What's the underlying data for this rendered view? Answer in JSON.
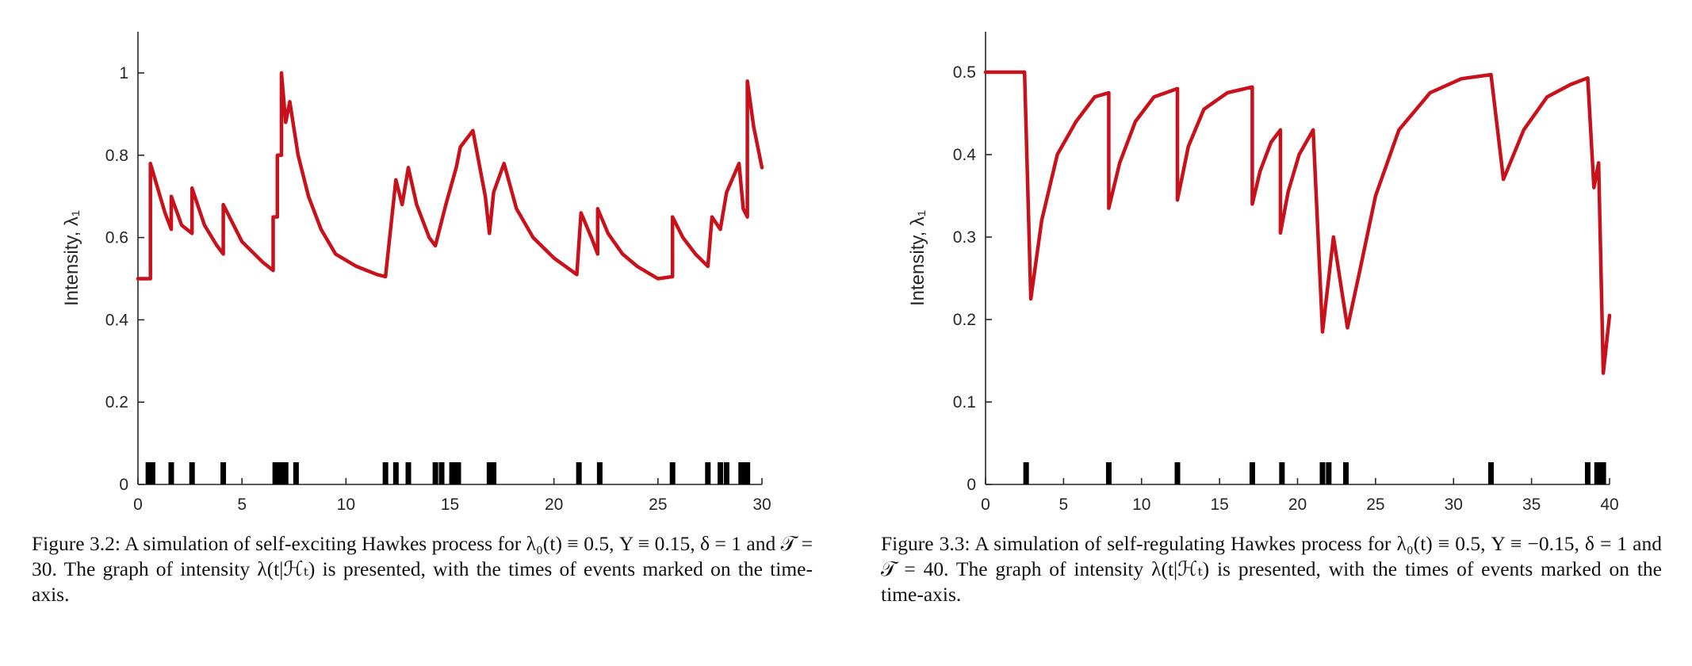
{
  "chart_data": [
    {
      "type": "line",
      "title": "",
      "xlabel": "",
      "ylabel": "Intensity, λ₁",
      "xlim": [
        0,
        30
      ],
      "ylim": [
        0,
        1.1
      ],
      "xticks": [
        0,
        5,
        10,
        15,
        20,
        25,
        30
      ],
      "yticks": [
        0,
        0.2,
        0.4,
        0.6,
        0.8,
        1
      ],
      "xtick_labels": [
        "0",
        "5",
        "10",
        "15",
        "20",
        "25",
        "30"
      ],
      "ytick_labels": [
        "0",
        "0.2",
        "0.4",
        "0.6",
        "0.8",
        "1"
      ],
      "line_color": "#c8111a",
      "event_color": "#000000",
      "baseline": 0.5,
      "jump": 0.15,
      "delta": 1,
      "T": 30,
      "series": [
        {
          "x": [
            0,
            0.3,
            0.3,
            0.6,
            0.6,
            1.3,
            1.6,
            1.6,
            2.1,
            2.6,
            2.6,
            3.2,
            3.8,
            4.1,
            4.1,
            5.0,
            6.0,
            6.5,
            6.5,
            6.7,
            6.7,
            6.9,
            6.9,
            7.1,
            7.1,
            7.3,
            7.3,
            7.7,
            8.2,
            8.8,
            9.5,
            10.5,
            11.5,
            11.9,
            11.9,
            12.4,
            12.4,
            12.7,
            12.7,
            13.0,
            13.0,
            13.4,
            14.0,
            14.3,
            14.3,
            14.8,
            14.8,
            15.3,
            15.3,
            15.5,
            15.5,
            16.1,
            16.7,
            16.9,
            16.9,
            17.1,
            17.1,
            17.6,
            18.2,
            19.0,
            20.0,
            21.1,
            21.1,
            21.3,
            21.3,
            21.8,
            22.1,
            22.1,
            22.6,
            23.3,
            24.0,
            25.0,
            25.7,
            25.7,
            26.2,
            26.8,
            27.4,
            27.4,
            27.6,
            27.6,
            28.0,
            28.0,
            28.3,
            28.3,
            28.9,
            29.1,
            29.1,
            29.3,
            29.3,
            29.6,
            30.0
          ],
          "y": [
            0.5,
            0.5,
            0.5,
            0.5,
            0.78,
            0.66,
            0.62,
            0.7,
            0.63,
            0.61,
            0.72,
            0.63,
            0.58,
            0.56,
            0.68,
            0.59,
            0.54,
            0.52,
            0.65,
            0.65,
            0.8,
            0.8,
            1.0,
            0.88,
            0.88,
            0.93,
            0.93,
            0.8,
            0.7,
            0.62,
            0.56,
            0.53,
            0.51,
            0.505,
            0.505,
            0.74,
            0.74,
            0.68,
            0.68,
            0.77,
            0.77,
            0.68,
            0.6,
            0.58,
            0.58,
            0.68,
            0.68,
            0.77,
            0.77,
            0.82,
            0.82,
            0.86,
            0.7,
            0.61,
            0.61,
            0.71,
            0.71,
            0.78,
            0.67,
            0.6,
            0.55,
            0.51,
            0.51,
            0.66,
            0.66,
            0.6,
            0.56,
            0.67,
            0.61,
            0.56,
            0.53,
            0.5,
            0.505,
            0.65,
            0.6,
            0.56,
            0.53,
            0.53,
            0.65,
            0.65,
            0.62,
            0.62,
            0.71,
            0.71,
            0.78,
            0.67,
            0.67,
            0.65,
            0.98,
            0.87,
            0.77
          ]
        }
      ],
      "events": [
        0.5,
        0.6,
        0.7,
        1.6,
        2.6,
        4.1,
        6.6,
        6.7,
        6.8,
        6.9,
        7.0,
        7.1,
        7.6,
        11.9,
        12.4,
        13.0,
        14.3,
        14.6,
        15.1,
        15.2,
        15.3,
        15.4,
        16.9,
        17.0,
        17.1,
        21.2,
        22.2,
        25.7,
        27.4,
        28.0,
        28.3,
        29.0,
        29.1,
        29.2,
        29.3
      ]
    },
    {
      "type": "line",
      "title": "",
      "xlabel": "",
      "ylabel": "Intensity, λ₁",
      "xlim": [
        0,
        40
      ],
      "ylim": [
        0,
        0.55
      ],
      "xticks": [
        0,
        5,
        10,
        15,
        20,
        25,
        30,
        35,
        40
      ],
      "yticks": [
        0,
        0.1,
        0.2,
        0.3,
        0.4,
        0.5
      ],
      "xtick_labels": [
        "0",
        "5",
        "10",
        "15",
        "20",
        "25",
        "30",
        "35",
        "40"
      ],
      "ytick_labels": [
        "0",
        "0.1",
        "0.2",
        "0.3",
        "0.4",
        "0.5"
      ],
      "line_color": "#c8111a",
      "event_color": "#000000",
      "baseline": 0.5,
      "jump": -0.15,
      "delta": 1,
      "T": 40,
      "series": [
        {
          "x": [
            0,
            2.5,
            2.5,
            2.9,
            3.6,
            4.6,
            5.8,
            7.0,
            7.9,
            7.9,
            8.6,
            9.6,
            10.8,
            12.3,
            12.3,
            13.0,
            14.0,
            15.5,
            17.1,
            17.1,
            17.6,
            18.3,
            18.9,
            18.9,
            19.4,
            20.1,
            21.0,
            21.0,
            21.6,
            21.6,
            22.3,
            22.3,
            23.2,
            24.0,
            25.0,
            26.5,
            28.5,
            30.5,
            32.4,
            32.4,
            33.2,
            34.5,
            36.0,
            37.5,
            38.6,
            38.6,
            39.0,
            39.0,
            39.3,
            39.3,
            39.6,
            40.0
          ],
          "y": [
            0.5,
            0.5,
            0.5,
            0.225,
            0.32,
            0.4,
            0.44,
            0.47,
            0.475,
            0.335,
            0.39,
            0.44,
            0.47,
            0.48,
            0.345,
            0.41,
            0.455,
            0.475,
            0.482,
            0.34,
            0.38,
            0.415,
            0.43,
            0.305,
            0.355,
            0.4,
            0.43,
            0.43,
            0.185,
            0.185,
            0.3,
            0.3,
            0.19,
            0.26,
            0.35,
            0.43,
            0.475,
            0.492,
            0.497,
            0.497,
            0.37,
            0.43,
            0.47,
            0.485,
            0.493,
            0.493,
            0.36,
            0.36,
            0.39,
            0.39,
            0.135,
            0.205
          ]
        }
      ],
      "events": [
        2.6,
        7.9,
        12.3,
        17.1,
        19.0,
        21.6,
        22.0,
        23.1,
        32.4,
        38.6,
        39.2,
        39.4,
        39.6
      ]
    }
  ],
  "captions": [
    {
      "label": "Figure 3.2:",
      "text": "A simulation of self-exciting Hawkes process for λ₀(t) ≡ 0.5, Y ≡ 0.15, δ = 1 and 𝒯 = 30. The graph of intensity λ(t|ℋₜ) is presented, with the times of events marked on the time-axis."
    },
    {
      "label": "Figure 3.3:",
      "text": "A simulation of self-regulating Hawkes process for λ₀(t) ≡ 0.5, Y ≡ −0.15, δ = 1 and 𝒯 = 40. The graph of intensity λ(t|ℋₜ) is presented, with the times of events marked on the time-axis."
    }
  ]
}
